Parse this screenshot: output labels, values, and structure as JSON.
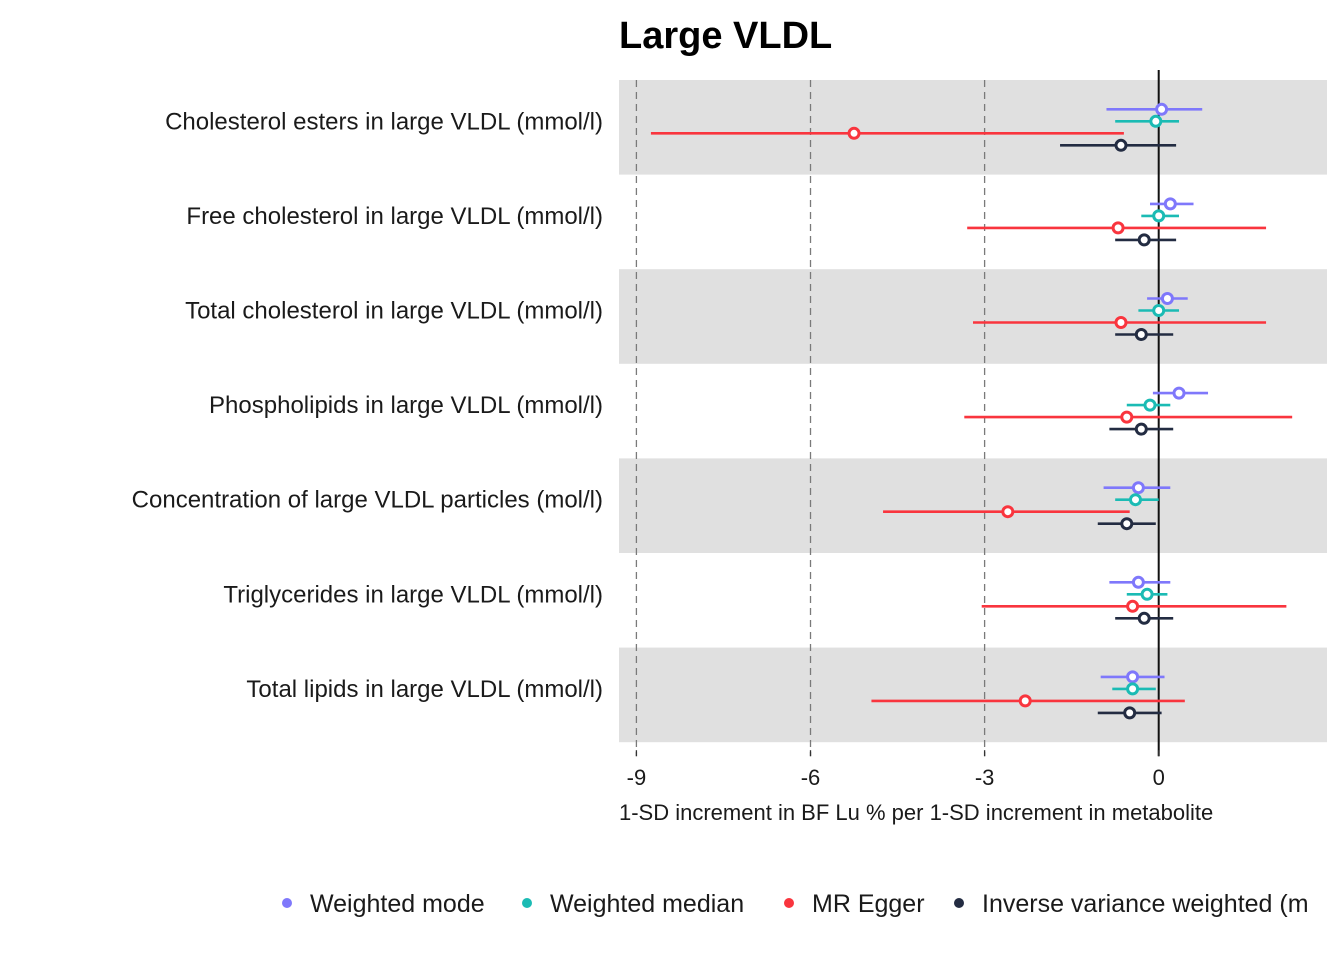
{
  "chart_data": {
    "type": "forest",
    "title": "Large VLDL",
    "xlabel": "1-SD increment in BF Lu % per 1-SD increment in metabolite",
    "ylabel": "",
    "xlim": [
      -9.3,
      2.9
    ],
    "xticks": [
      -9,
      -6,
      -3,
      0
    ],
    "xtick_labels": [
      "-9",
      "-6",
      "-3",
      "0"
    ],
    "reference_line": 0,
    "dashed_lines": [
      -9,
      -6,
      -3
    ],
    "row_shading": "alternating-grey",
    "legend_position": "bottom",
    "categories": [
      "Cholesterol esters in large VLDL (mmol/l)",
      "Free cholesterol in large VLDL (mmol/l)",
      "Total cholesterol in large VLDL (mmol/l)",
      "Phospholipids in large VLDL (mmol/l)",
      "Concentration of large VLDL particles (mol/l)",
      "Triglycerides in large VLDL (mmol/l)",
      "Total lipids in large VLDL (mmol/l)"
    ],
    "series": [
      {
        "name": "Weighted mode",
        "color": "#7f78fb",
        "estimates": [
          {
            "est": 0.05,
            "lo": -0.9,
            "hi": 0.75
          },
          {
            "est": 0.2,
            "lo": -0.15,
            "hi": 0.6
          },
          {
            "est": 0.15,
            "lo": -0.2,
            "hi": 0.5
          },
          {
            "est": 0.35,
            "lo": -0.1,
            "hi": 0.85
          },
          {
            "est": -0.35,
            "lo": -0.95,
            "hi": 0.2
          },
          {
            "est": -0.35,
            "lo": -0.85,
            "hi": 0.2
          },
          {
            "est": -0.45,
            "lo": -1.0,
            "hi": 0.1
          }
        ]
      },
      {
        "name": "Weighted median",
        "color": "#1bbbb4",
        "estimates": [
          {
            "est": -0.05,
            "lo": -0.75,
            "hi": 0.35
          },
          {
            "est": 0.0,
            "lo": -0.3,
            "hi": 0.35
          },
          {
            "est": 0.0,
            "lo": -0.35,
            "hi": 0.35
          },
          {
            "est": -0.15,
            "lo": -0.55,
            "hi": 0.2
          },
          {
            "est": -0.4,
            "lo": -0.75,
            "hi": 0.0
          },
          {
            "est": -0.2,
            "lo": -0.55,
            "hi": 0.15
          },
          {
            "est": -0.45,
            "lo": -0.8,
            "hi": -0.05
          }
        ]
      },
      {
        "name": "MR Egger",
        "color": "#f9353e",
        "estimates": [
          {
            "est": -5.25,
            "lo": -8.75,
            "hi": -0.6
          },
          {
            "est": -0.7,
            "lo": -3.3,
            "hi": 1.85
          },
          {
            "est": -0.65,
            "lo": -3.2,
            "hi": 1.85
          },
          {
            "est": -0.55,
            "lo": -3.35,
            "hi": 2.3
          },
          {
            "est": -2.6,
            "lo": -4.75,
            "hi": -0.5
          },
          {
            "est": -0.45,
            "lo": -3.05,
            "hi": 2.2
          },
          {
            "est": -2.3,
            "lo": -4.95,
            "hi": 0.45
          }
        ]
      },
      {
        "name": "Inverse variance weighted (multiplicative random effects)",
        "color": "#232c42",
        "estimates": [
          {
            "est": -0.65,
            "lo": -1.7,
            "hi": 0.3
          },
          {
            "est": -0.25,
            "lo": -0.75,
            "hi": 0.3
          },
          {
            "est": -0.3,
            "lo": -0.75,
            "hi": 0.25
          },
          {
            "est": -0.3,
            "lo": -0.85,
            "hi": 0.25
          },
          {
            "est": -0.55,
            "lo": -1.05,
            "hi": -0.05
          },
          {
            "est": -0.25,
            "lo": -0.75,
            "hi": 0.25
          },
          {
            "est": -0.5,
            "lo": -1.05,
            "hi": 0.05
          }
        ]
      }
    ],
    "legend_labels": [
      "Weighted mode",
      "Weighted median",
      "MR Egger",
      "Inverse variance weighted (m"
    ]
  }
}
